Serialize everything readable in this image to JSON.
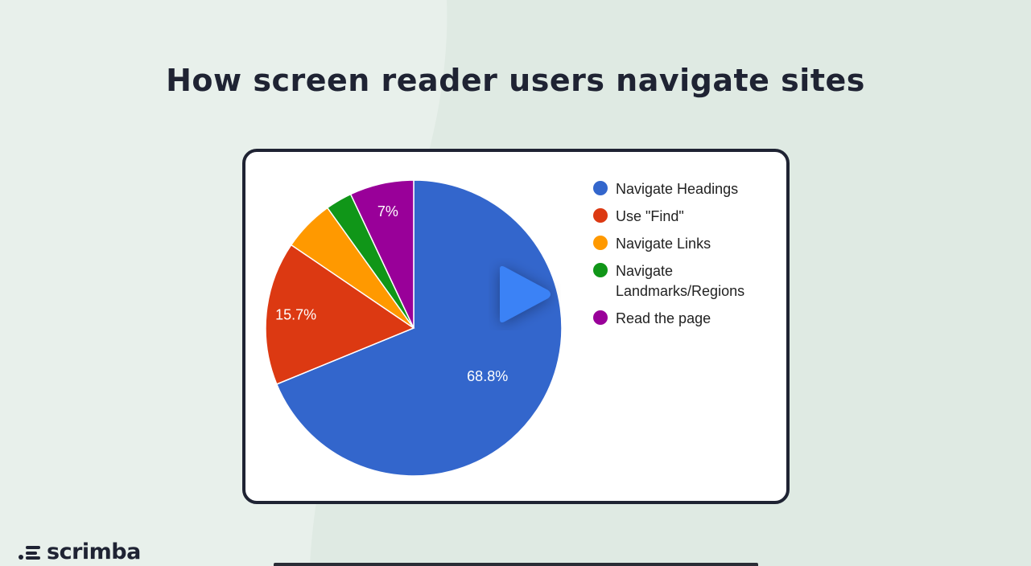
{
  "page": {
    "title": "How screen reader users navigate sites"
  },
  "chart_data": {
    "type": "pie",
    "categories": [
      "Navigate Headings",
      "Use \"Find\"",
      "Navigate Links",
      "Navigate Landmarks/Regions",
      "Read the page"
    ],
    "values": [
      68.8,
      15.7,
      5.6,
      2.9,
      7.0
    ],
    "slice_labels": [
      "68.8%",
      "15.7%",
      "",
      "",
      "7%"
    ],
    "colors": [
      "#3366cc",
      "#dc3912",
      "#ff9900",
      "#109618",
      "#990099"
    ],
    "legend_position": "right"
  },
  "player": {
    "play_icon": "play-icon",
    "play_color": "#3b82f6"
  },
  "brand": {
    "logo_text": "scrimba",
    "logo_icon": "scrimba-logo-icon"
  }
}
